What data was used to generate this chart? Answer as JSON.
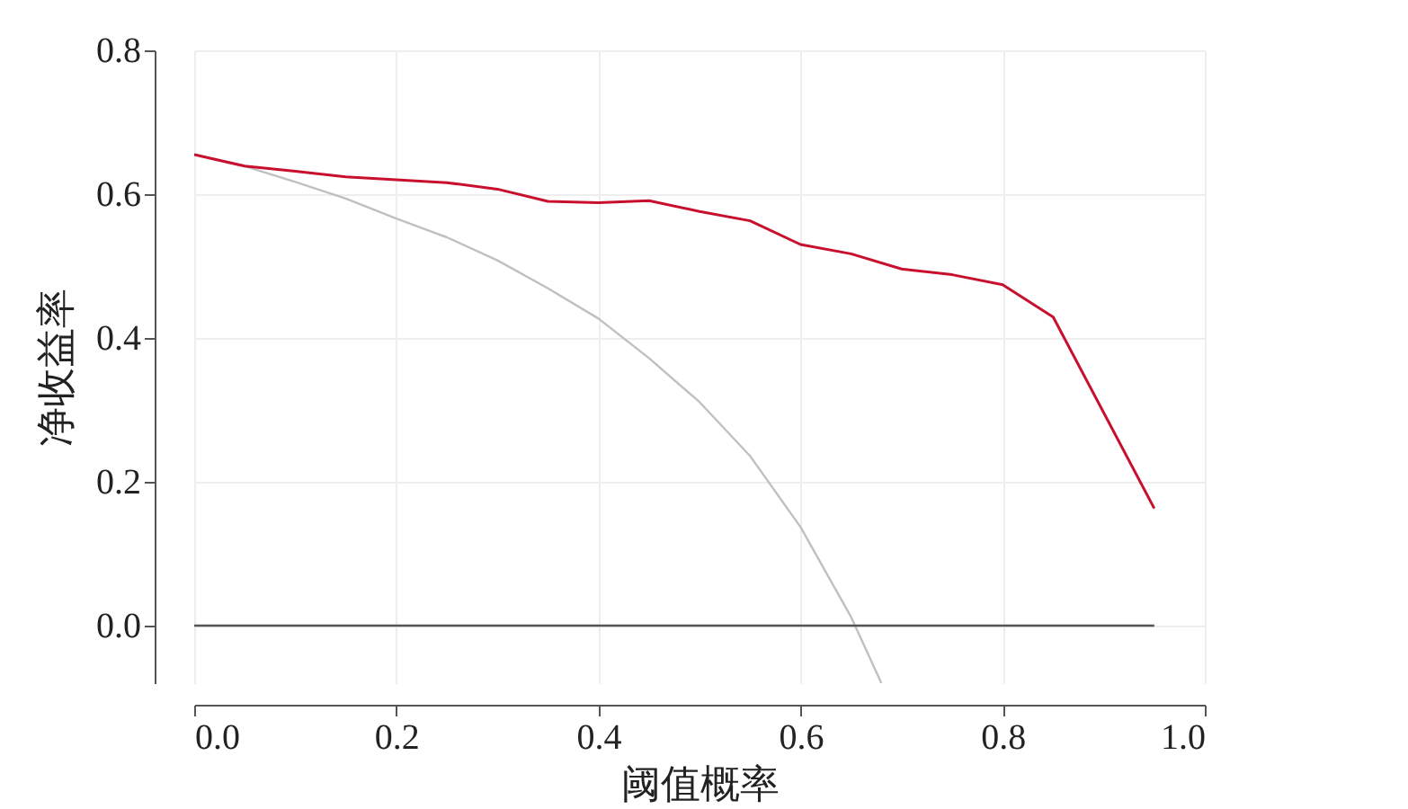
{
  "chart_data": {
    "type": "line",
    "xlabel": "阈值概率",
    "ylabel": "净收益率",
    "xlim": [
      0,
      1
    ],
    "xticks": [
      {
        "value": 0,
        "label": "0.0"
      },
      0.2,
      0.4,
      0.6,
      0.8,
      {
        "value": 1,
        "label": "1.0"
      }
    ],
    "ylim": [
      -0.08,
      0.8
    ],
    "yticks": [
      {
        "value": 0,
        "label": "0.0"
      },
      0.2,
      0.4,
      0.6,
      0.8
    ],
    "grid": true,
    "line_style": "solid",
    "series": [
      {
        "color": "#c0c0c0",
        "x": [
          0,
          0.05,
          0.1,
          0.15,
          0.2,
          0.25,
          0.3,
          0.35,
          0.4,
          0.45,
          0.5,
          0.55,
          0.6,
          0.65,
          0.68
        ],
        "values": [
          0.655,
          0.639,
          0.617,
          0.594,
          0.566,
          0.54,
          0.508,
          0.469,
          0.427,
          0.372,
          0.311,
          0.236,
          0.137,
          0.012,
          -0.08
        ]
      },
      {
        "color": "#555555",
        "x": [
          0,
          0.95
        ],
        "values": [
          0,
          0
        ]
      },
      {
        "color": "#c8102e",
        "x": [
          0,
          0.05,
          0.1,
          0.15,
          0.2,
          0.25,
          0.3,
          0.35,
          0.4,
          0.45,
          0.5,
          0.55,
          0.6,
          0.65,
          0.7,
          0.75,
          0.8,
          0.85,
          0.95
        ],
        "values": [
          0.655,
          0.639,
          0.632,
          0.624,
          0.62,
          0.616,
          0.607,
          0.59,
          0.588,
          0.591,
          0.576,
          0.563,
          0.53,
          0.517,
          0.496,
          0.488,
          0.474,
          0.429,
          0.163
        ]
      }
    ]
  }
}
